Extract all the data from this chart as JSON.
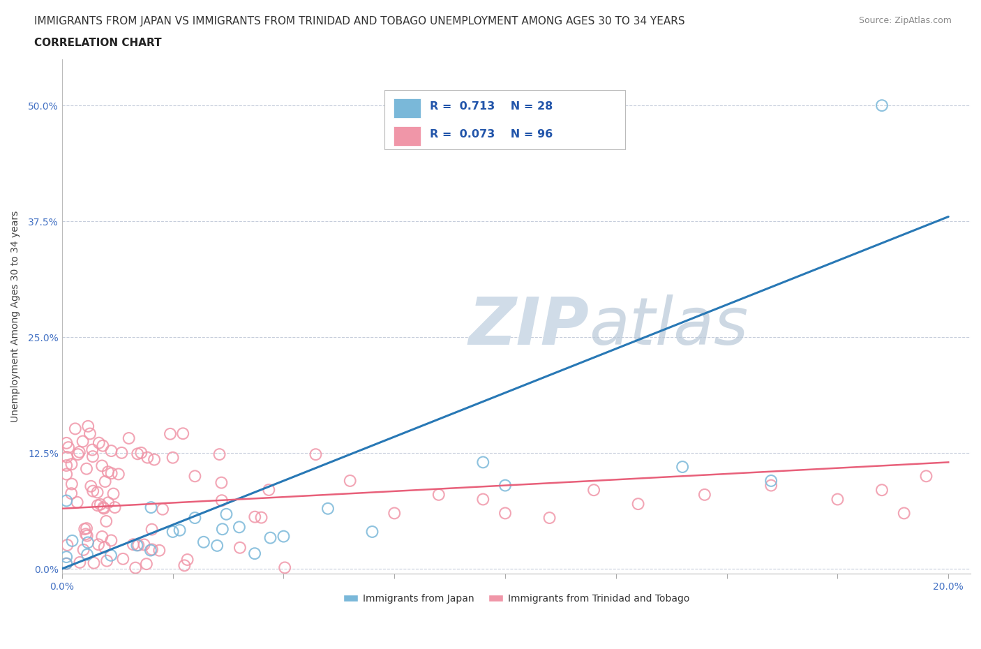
{
  "title_line1": "IMMIGRANTS FROM JAPAN VS IMMIGRANTS FROM TRINIDAD AND TOBAGO UNEMPLOYMENT AMONG AGES 30 TO 34 YEARS",
  "title_line2": "CORRELATION CHART",
  "source_text": "Source: ZipAtlas.com",
  "ylabel": "Unemployment Among Ages 30 to 34 years",
  "xlim": [
    0.0,
    0.205
  ],
  "ylim": [
    -0.005,
    0.55
  ],
  "yticks": [
    0.0,
    0.125,
    0.25,
    0.375,
    0.5
  ],
  "ytick_labels": [
    "0.0%",
    "12.5%",
    "25.0%",
    "37.5%",
    "50.0%"
  ],
  "xtick_positions": [
    0.0,
    0.025,
    0.05,
    0.075,
    0.1,
    0.125,
    0.15,
    0.175,
    0.2
  ],
  "xtick_labels": [
    "0.0%",
    "",
    "",
    "",
    "",
    "",
    "",
    "",
    "20.0%"
  ],
  "japan_color": "#7ab8d9",
  "tt_color": "#f096a8",
  "japan_R": 0.713,
  "japan_N": 28,
  "tt_R": 0.073,
  "tt_N": 96,
  "watermark_color": "#d0dce8",
  "japan_trend_x": [
    0.0,
    0.2
  ],
  "japan_trend_y": [
    0.0,
    0.38
  ],
  "tt_trend_x": [
    0.0,
    0.2
  ],
  "tt_trend_y": [
    0.065,
    0.115
  ],
  "title_fontsize": 11,
  "axis_label_fontsize": 10,
  "tick_fontsize": 10,
  "source_fontsize": 9
}
